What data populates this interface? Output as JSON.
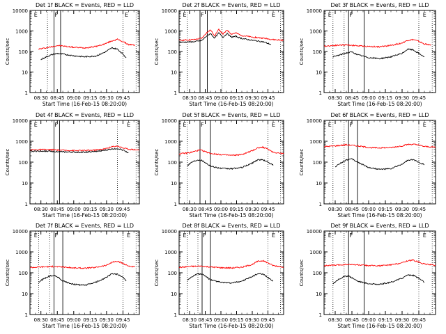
{
  "figure": {
    "ylabel": "Counts/sec",
    "xlabel": "Start Time (16-Feb-15 08:20:00)",
    "x_tick_labels": [
      "08:30",
      "08:45",
      "09:00",
      "09:15",
      "09:30",
      "09:45"
    ],
    "y_tick_labels": [
      "1",
      "10",
      "100",
      "1000",
      "10000"
    ],
    "event_marker_labels": [
      "E",
      "F",
      "E"
    ],
    "colors": {
      "events": "#000000",
      "lld": "#ff0000",
      "axes": "#000000"
    }
  },
  "chart_data": [
    {
      "type": "line",
      "title": "Det 1f BLACK = Events, RED = LLD",
      "xlabel": "Start Time (16-Feb-15 08:20:00)",
      "ylabel": "Counts/sec",
      "y_scale": "log",
      "ylim": [
        1,
        10000
      ],
      "xlim_minutes": [
        0,
        100
      ],
      "markers": {
        "dotted": [
          16,
          85,
          97
        ],
        "solid": [
          22,
          28
        ],
        "labels": {
          "E1": 3,
          "F": 22,
          "E2": 86
        }
      },
      "series": [
        {
          "name": "RED",
          "color": "#ff0000",
          "x": [
            8,
            20,
            25,
            30,
            40,
            50,
            60,
            68,
            75,
            80,
            85,
            90,
            96
          ],
          "values": [
            130,
            170,
            195,
            185,
            160,
            150,
            175,
            230,
            330,
            390,
            300,
            220,
            200
          ]
        },
        {
          "name": "BLACK",
          "color": "#000000",
          "x": [
            10,
            15,
            20,
            25,
            30,
            40,
            50,
            60,
            68,
            75,
            80,
            85,
            88
          ],
          "values": [
            40,
            55,
            70,
            80,
            75,
            62,
            55,
            60,
            90,
            150,
            130,
            75,
            50
          ]
        }
      ]
    },
    {
      "type": "line",
      "title": "Det 2f BLACK = Events, RED = LLD",
      "xlabel": "Start Time (16-Feb-15 08:20:00)",
      "ylabel": "Counts/sec",
      "y_scale": "log",
      "ylim": [
        1,
        10000
      ],
      "xlim_minutes": [
        0,
        100
      ],
      "markers": {
        "dotted": [
          8,
          41,
          97
        ],
        "solid": [
          20,
          27
        ],
        "labels": {
          "E1": 3,
          "F": 20,
          "E2": 88
        }
      },
      "series": [
        {
          "name": "RED",
          "color": "#ff0000",
          "x": [
            0,
            15,
            22,
            26,
            30,
            34,
            38,
            42,
            46,
            50,
            54,
            60,
            70,
            80,
            90,
            100
          ],
          "values": [
            350,
            380,
            450,
            800,
            1100,
            600,
            1200,
            700,
            1100,
            700,
            800,
            600,
            500,
            450,
            380,
            350
          ]
        },
        {
          "name": "BLACK",
          "color": "#000000",
          "x": [
            0,
            15,
            22,
            26,
            30,
            34,
            38,
            42,
            46,
            50,
            54,
            60,
            70,
            80,
            88
          ],
          "values": [
            280,
            300,
            350,
            550,
            750,
            450,
            800,
            500,
            750,
            500,
            550,
            430,
            350,
            300,
            220
          ]
        }
      ]
    },
    {
      "type": "line",
      "title": "Det 3f BLACK = Events, RED = LLD",
      "xlabel": "Start Time (16-Feb-15 08:20:00)",
      "ylabel": "Counts/sec",
      "y_scale": "log",
      "ylim": [
        1,
        10000
      ],
      "xlim_minutes": [
        0,
        100
      ],
      "markers": {
        "dotted": [
          8,
          18,
          85,
          97
        ],
        "solid": [
          22,
          36
        ],
        "labels": {
          "E1": 3,
          "F": 22,
          "E2": 88
        }
      },
      "series": [
        {
          "name": "RED",
          "color": "#ff0000",
          "x": [
            0,
            10,
            20,
            30,
            40,
            50,
            60,
            70,
            75,
            80,
            85,
            90,
            96
          ],
          "values": [
            180,
            200,
            210,
            190,
            175,
            170,
            200,
            260,
            350,
            380,
            310,
            230,
            210
          ]
        },
        {
          "name": "BLACK",
          "color": "#000000",
          "x": [
            8,
            15,
            20,
            25,
            30,
            40,
            50,
            60,
            70,
            75,
            80,
            85,
            90
          ],
          "values": [
            55,
            70,
            85,
            95,
            70,
            50,
            45,
            55,
            80,
            130,
            120,
            80,
            55
          ]
        }
      ]
    },
    {
      "type": "line",
      "title": "Det 4f BLACK = Events, RED = LLD",
      "xlabel": "Start Time (16-Feb-15 08:20:00)",
      "ylabel": "Counts/sec",
      "y_scale": "log",
      "ylim": [
        1,
        10000
      ],
      "xlim_minutes": [
        0,
        100
      ],
      "markers": {
        "dotted": [
          80,
          97
        ],
        "solid": [
          22,
          27
        ],
        "labels": {
          "E1": 3,
          "F": 22,
          "E2": 88
        }
      },
      "series": [
        {
          "name": "RED",
          "color": "#ff0000",
          "x": [
            0,
            10,
            20,
            30,
            40,
            50,
            60,
            70,
            75,
            80,
            85,
            90,
            100
          ],
          "values": [
            380,
            400,
            390,
            370,
            360,
            360,
            380,
            450,
            550,
            600,
            480,
            420,
            380
          ]
        },
        {
          "name": "BLACK",
          "color": "#000000",
          "x": [
            0,
            10,
            20,
            30,
            40,
            50,
            60,
            70,
            75,
            80,
            85,
            90
          ],
          "values": [
            330,
            340,
            330,
            310,
            300,
            300,
            320,
            380,
            430,
            450,
            380,
            280
          ]
        }
      ]
    },
    {
      "type": "line",
      "title": "Det 5f BLACK = Events, RED = LLD",
      "xlabel": "Start Time (16-Feb-15 08:20:00)",
      "ylabel": "Counts/sec",
      "y_scale": "log",
      "ylim": [
        1,
        10000
      ],
      "xlim_minutes": [
        0,
        100
      ],
      "markers": {
        "dotted": [
          8,
          85,
          97
        ],
        "solid": [
          20,
          30
        ],
        "labels": {
          "E1": 3,
          "F": 20,
          "E2": 88
        }
      },
      "series": [
        {
          "name": "RED",
          "color": "#ff0000",
          "x": [
            0,
            10,
            15,
            20,
            25,
            30,
            40,
            50,
            60,
            70,
            75,
            80,
            85,
            90,
            100
          ],
          "values": [
            250,
            280,
            330,
            380,
            320,
            260,
            230,
            210,
            230,
            350,
            480,
            520,
            420,
            300,
            250
          ]
        },
        {
          "name": "BLACK",
          "color": "#000000",
          "x": [
            8,
            12,
            18,
            22,
            26,
            30,
            40,
            50,
            60,
            70,
            75,
            80,
            85,
            90
          ],
          "values": [
            70,
            100,
            130,
            120,
            90,
            65,
            50,
            48,
            55,
            90,
            130,
            130,
            100,
            70
          ]
        }
      ]
    },
    {
      "type": "line",
      "title": "Det 6f BLACK = Events, RED = LLD",
      "xlabel": "Start Time (16-Feb-15 08:20:00)",
      "ylabel": "Counts/sec",
      "y_scale": "log",
      "ylim": [
        1,
        10000
      ],
      "xlim_minutes": [
        0,
        100
      ],
      "markers": {
        "dotted": [
          8,
          18,
          85,
          97
        ],
        "solid": [
          22,
          30
        ],
        "labels": {
          "E1": 3,
          "F": 22,
          "E2": 88
        }
      },
      "series": [
        {
          "name": "RED",
          "color": "#ff0000",
          "x": [
            0,
            10,
            20,
            30,
            40,
            50,
            60,
            70,
            75,
            80,
            85,
            90,
            100
          ],
          "values": [
            550,
            600,
            680,
            600,
            500,
            480,
            500,
            600,
            700,
            720,
            650,
            560,
            520
          ]
        },
        {
          "name": "BLACK",
          "color": "#000000",
          "x": [
            10,
            15,
            20,
            25,
            30,
            40,
            50,
            60,
            70,
            75,
            80,
            85,
            90
          ],
          "values": [
            60,
            90,
            130,
            140,
            100,
            55,
            45,
            48,
            80,
            120,
            130,
            100,
            75
          ]
        }
      ]
    },
    {
      "type": "line",
      "title": "Det 7f BLACK = Events, RED = LLD",
      "xlabel": "Start Time (16-Feb-15 08:20:00)",
      "ylabel": "Counts/sec",
      "y_scale": "log",
      "ylim": [
        1,
        10000
      ],
      "xlim_minutes": [
        0,
        100
      ],
      "markers": {
        "dotted": [
          8,
          18,
          85,
          97
        ],
        "solid": [
          22,
          30
        ],
        "labels": {
          "E1": 3,
          "F": 22,
          "E2": 88
        }
      },
      "series": [
        {
          "name": "RED",
          "color": "#ff0000",
          "x": [
            0,
            10,
            20,
            30,
            40,
            50,
            60,
            70,
            75,
            80,
            85,
            90,
            96
          ],
          "values": [
            180,
            190,
            200,
            190,
            170,
            165,
            180,
            230,
            320,
            350,
            280,
            210,
            190
          ]
        },
        {
          "name": "BLACK",
          "color": "#000000",
          "x": [
            8,
            12,
            18,
            22,
            26,
            30,
            40,
            50,
            60,
            70,
            75,
            80,
            85,
            88
          ],
          "values": [
            35,
            50,
            70,
            75,
            60,
            40,
            28,
            25,
            35,
            60,
            90,
            85,
            60,
            40
          ]
        }
      ]
    },
    {
      "type": "line",
      "title": "Det 8f BLACK = Events, RED = LLD",
      "xlabel": "Start Time (16-Feb-15 08:20:00)",
      "ylabel": "Counts/sec",
      "y_scale": "log",
      "ylim": [
        1,
        10000
      ],
      "xlim_minutes": [
        0,
        100
      ],
      "markers": {
        "dotted": [
          8,
          18,
          85,
          97
        ],
        "solid": [
          22,
          30
        ],
        "labels": {
          "E1": 3,
          "F": 22,
          "E2": 88
        }
      },
      "series": [
        {
          "name": "RED",
          "color": "#ff0000",
          "x": [
            0,
            10,
            20,
            30,
            40,
            50,
            60,
            70,
            75,
            80,
            85,
            90,
            100
          ],
          "values": [
            180,
            200,
            210,
            190,
            175,
            170,
            185,
            250,
            350,
            380,
            300,
            220,
            190
          ]
        },
        {
          "name": "BLACK",
          "color": "#000000",
          "x": [
            8,
            12,
            18,
            22,
            26,
            30,
            40,
            50,
            60,
            70,
            75,
            80,
            85,
            90
          ],
          "values": [
            45,
            65,
            90,
            85,
            65,
            45,
            35,
            32,
            40,
            65,
            90,
            85,
            60,
            40
          ]
        }
      ]
    },
    {
      "type": "line",
      "title": "Det 9f BLACK = Events, RED = LLD",
      "xlabel": "Start Time (16-Feb-15 08:20:00)",
      "ylabel": "Counts/sec",
      "y_scale": "log",
      "ylim": [
        1,
        10000
      ],
      "xlim_minutes": [
        0,
        100
      ],
      "markers": {
        "dotted": [
          8,
          18,
          85,
          97
        ],
        "solid": [
          22,
          36
        ],
        "labels": {
          "E1": 3,
          "F": 22,
          "E2": 88
        }
      },
      "series": [
        {
          "name": "RED",
          "color": "#ff0000",
          "x": [
            0,
            10,
            20,
            30,
            40,
            50,
            60,
            70,
            75,
            80,
            85,
            90,
            100
          ],
          "values": [
            220,
            230,
            250,
            240,
            220,
            215,
            240,
            300,
            380,
            400,
            330,
            260,
            230
          ]
        },
        {
          "name": "BLACK",
          "color": "#000000",
          "x": [
            8,
            12,
            18,
            22,
            26,
            30,
            40,
            50,
            60,
            70,
            75,
            80,
            85,
            90
          ],
          "values": [
            30,
            45,
            65,
            70,
            55,
            40,
            30,
            28,
            35,
            55,
            80,
            75,
            55,
            35
          ]
        }
      ]
    }
  ]
}
